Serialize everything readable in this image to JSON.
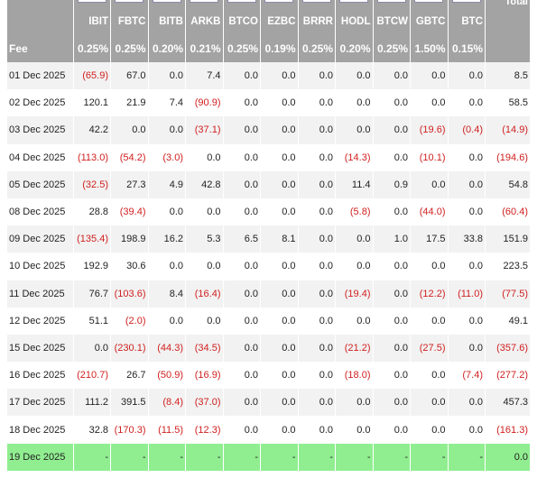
{
  "table": {
    "corner_label": "",
    "total_header": "Total",
    "fee_label": "Fee",
    "columns": [
      {
        "ticker": "IBIT",
        "fee": "0.25%",
        "logo": "ishares-logo"
      },
      {
        "ticker": "FBTC",
        "fee": "0.25%",
        "logo": "fidelity-logo"
      },
      {
        "ticker": "BITB",
        "fee": "0.20%",
        "logo": "bitwise-logo"
      },
      {
        "ticker": "ARKB",
        "fee": "0.21%",
        "logo": "ark-invest-logo"
      },
      {
        "ticker": "BTCO",
        "fee": "0.25%",
        "logo": "invesco-logo"
      },
      {
        "ticker": "EZBC",
        "fee": "0.19%",
        "logo": "franklin-logo"
      },
      {
        "ticker": "BRRR",
        "fee": "0.25%",
        "logo": "valkyrie-logo"
      },
      {
        "ticker": "HODL",
        "fee": "0.20%",
        "logo": "vaneck-logo"
      },
      {
        "ticker": "BTCW",
        "fee": "0.25%",
        "logo": "wisdomtree-logo"
      },
      {
        "ticker": "GBTC",
        "fee": "1.50%",
        "logo": "grayscale-logo"
      },
      {
        "ticker": "BTC",
        "fee": "0.15%",
        "logo": "grayscale-mini-logo"
      }
    ],
    "rows": [
      {
        "date": "01 Dec 2025",
        "values": [
          "(65.9)",
          "67.0",
          "0.0",
          "7.4",
          "0.0",
          "0.0",
          "0.0",
          "0.0",
          "0.0",
          "0.0",
          "0.0"
        ],
        "total": "8.5"
      },
      {
        "date": "02 Dec 2025",
        "values": [
          "120.1",
          "21.9",
          "7.4",
          "(90.9)",
          "0.0",
          "0.0",
          "0.0",
          "0.0",
          "0.0",
          "0.0",
          "0.0"
        ],
        "total": "58.5"
      },
      {
        "date": "03 Dec 2025",
        "values": [
          "42.2",
          "0.0",
          "0.0",
          "(37.1)",
          "0.0",
          "0.0",
          "0.0",
          "0.0",
          "0.0",
          "(19.6)",
          "(0.4)"
        ],
        "total": "(14.9)"
      },
      {
        "date": "04 Dec 2025",
        "values": [
          "(113.0)",
          "(54.2)",
          "(3.0)",
          "0.0",
          "0.0",
          "0.0",
          "0.0",
          "(14.3)",
          "0.0",
          "(10.1)",
          "0.0"
        ],
        "total": "(194.6)"
      },
      {
        "date": "05 Dec 2025",
        "values": [
          "(32.5)",
          "27.3",
          "4.9",
          "42.8",
          "0.0",
          "0.0",
          "0.0",
          "11.4",
          "0.9",
          "0.0",
          "0.0"
        ],
        "total": "54.8"
      },
      {
        "date": "08 Dec 2025",
        "values": [
          "28.8",
          "(39.4)",
          "0.0",
          "0.0",
          "0.0",
          "0.0",
          "0.0",
          "(5.8)",
          "0.0",
          "(44.0)",
          "0.0"
        ],
        "total": "(60.4)"
      },
      {
        "date": "09 Dec 2025",
        "values": [
          "(135.4)",
          "198.9",
          "16.2",
          "5.3",
          "6.5",
          "8.1",
          "0.0",
          "0.0",
          "1.0",
          "17.5",
          "33.8"
        ],
        "total": "151.9"
      },
      {
        "date": "10 Dec 2025",
        "values": [
          "192.9",
          "30.6",
          "0.0",
          "0.0",
          "0.0",
          "0.0",
          "0.0",
          "0.0",
          "0.0",
          "0.0",
          "0.0"
        ],
        "total": "223.5"
      },
      {
        "date": "11 Dec 2025",
        "values": [
          "76.7",
          "(103.6)",
          "8.4",
          "(16.4)",
          "0.0",
          "0.0",
          "0.0",
          "(19.4)",
          "0.0",
          "(12.2)",
          "(11.0)"
        ],
        "total": "(77.5)"
      },
      {
        "date": "12 Dec 2025",
        "values": [
          "51.1",
          "(2.0)",
          "0.0",
          "0.0",
          "0.0",
          "0.0",
          "0.0",
          "0.0",
          "0.0",
          "0.0",
          "0.0"
        ],
        "total": "49.1"
      },
      {
        "date": "15 Dec 2025",
        "values": [
          "0.0",
          "(230.1)",
          "(44.3)",
          "(34.5)",
          "0.0",
          "0.0",
          "0.0",
          "(21.2)",
          "0.0",
          "(27.5)",
          "0.0"
        ],
        "total": "(357.6)"
      },
      {
        "date": "16 Dec 2025",
        "values": [
          "(210.7)",
          "26.7",
          "(50.9)",
          "(16.9)",
          "0.0",
          "0.0",
          "0.0",
          "(18.0)",
          "0.0",
          "0.0",
          "(7.4)"
        ],
        "total": "(277.2)"
      },
      {
        "date": "17 Dec 2025",
        "values": [
          "111.2",
          "391.5",
          "(8.4)",
          "(37.0)",
          "0.0",
          "0.0",
          "0.0",
          "0.0",
          "0.0",
          "0.0",
          "0.0"
        ],
        "total": "457.3"
      },
      {
        "date": "18 Dec 2025",
        "values": [
          "32.8",
          "(170.3)",
          "(11.5)",
          "(12.3)",
          "0.0",
          "0.0",
          "0.0",
          "0.0",
          "0.0",
          "0.0",
          "0.0"
        ],
        "total": "(161.3)"
      },
      {
        "date": "19 Dec 2025",
        "values": [
          "-",
          "-",
          "-",
          "-",
          "-",
          "-",
          "-",
          "-",
          "-",
          "-",
          "-"
        ],
        "total": "0.0",
        "highlight": true
      }
    ],
    "colors": {
      "header_bg": "#a3a3a3",
      "negative": "#d12020",
      "highlight": "#90ee90",
      "stripe": "#f2f2f2"
    }
  }
}
